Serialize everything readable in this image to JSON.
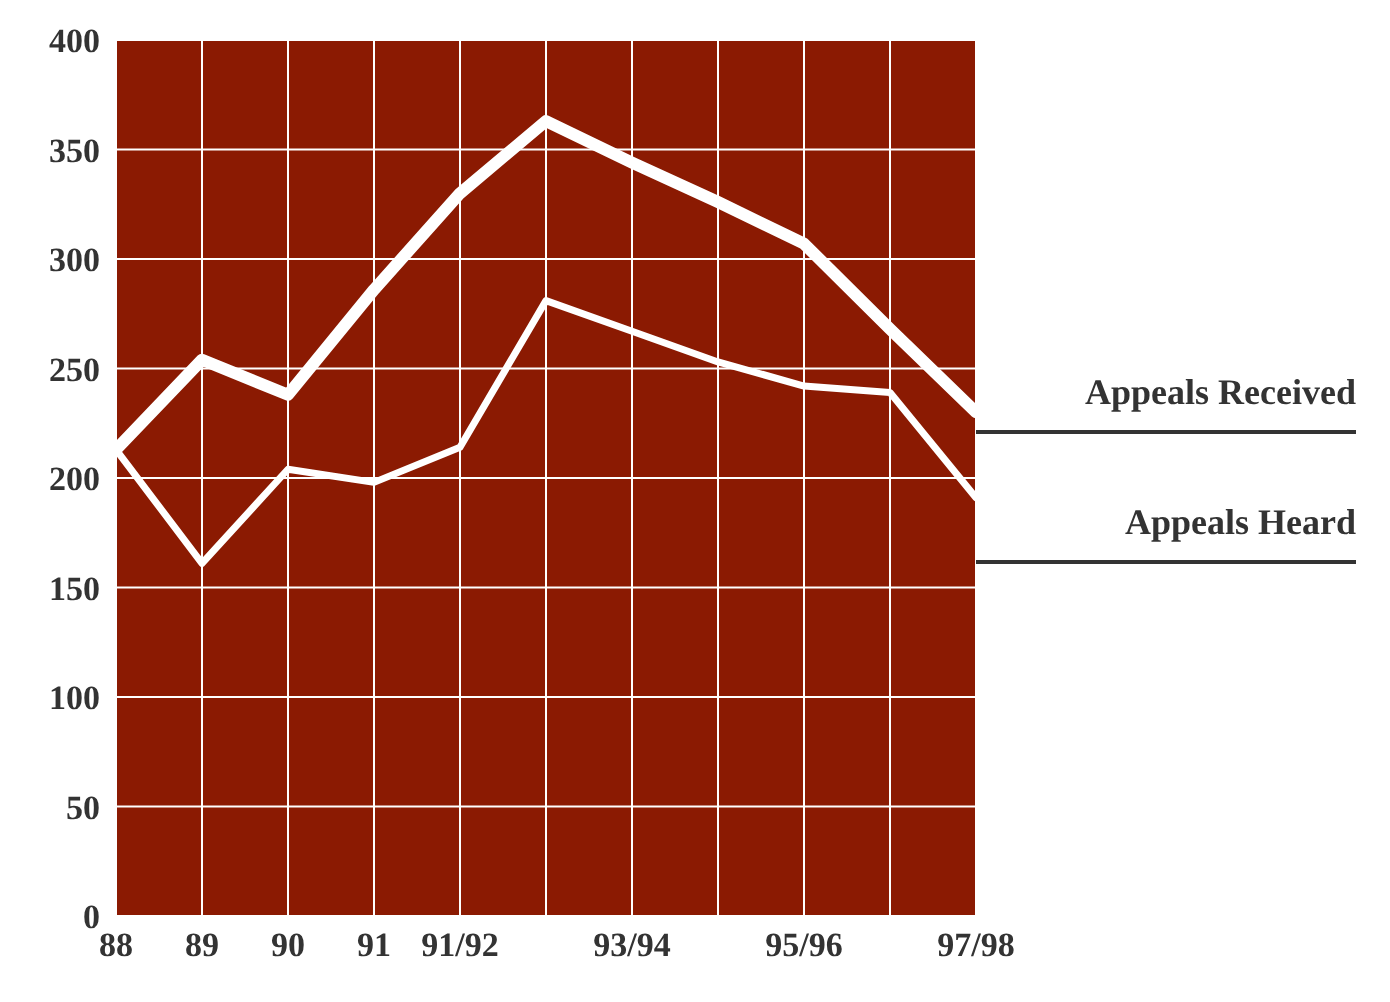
{
  "chart_data": {
    "type": "line",
    "categories": [
      "88",
      "89",
      "90",
      "91",
      "91/92",
      null,
      "93/94",
      null,
      "95/96",
      null,
      "97/98"
    ],
    "series": [
      {
        "name": "Appeals Received",
        "color": "#ffffff",
        "values": [
          213,
          254,
          238,
          286,
          330,
          363,
          344,
          326,
          307,
          268,
          230
        ]
      },
      {
        "name": "Appeals Heard",
        "color": "#ffffff",
        "values": [
          213,
          161,
          204,
          198,
          214,
          281,
          267,
          253,
          242,
          239,
          191
        ]
      }
    ],
    "ylim": [
      0,
      400
    ],
    "yticks": [
      0,
      50,
      100,
      150,
      200,
      250,
      300,
      350,
      400
    ],
    "grid": true,
    "legend": "right",
    "marker": "none"
  }
}
